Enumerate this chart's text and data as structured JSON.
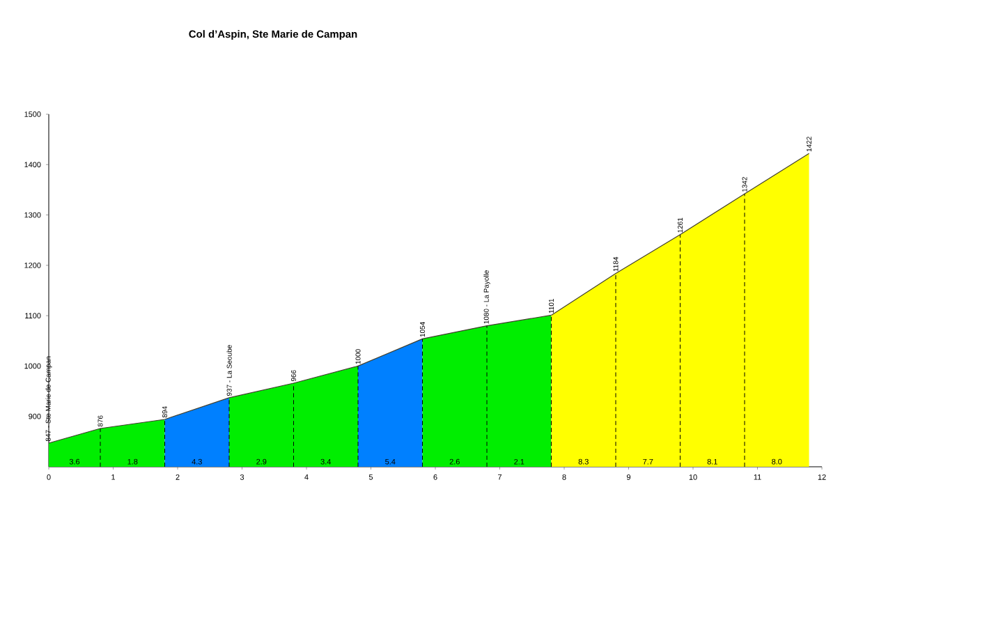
{
  "chart_data": {
    "type": "area",
    "title": "Col d’Aspin, Ste Marie de Campan",
    "series": [
      {
        "color": "#00ee00",
        "x": [
          0,
          0.8,
          1.8
        ],
        "values": [
          847,
          876,
          894
        ],
        "value_labels": [
          "847 - Ste Marie de Campan",
          "876",
          "894"
        ]
      },
      {
        "color": "#0080ff",
        "x": [
          1.8,
          2.8
        ],
        "values": [
          894,
          937
        ],
        "value_labels": [
          null,
          "937 - La Seoube"
        ]
      },
      {
        "color": "#00ee00",
        "x": [
          2.8,
          3.8,
          4.8
        ],
        "values": [
          937,
          966,
          1000
        ],
        "value_labels": [
          null,
          "966",
          "1000"
        ]
      },
      {
        "color": "#0080ff",
        "x": [
          4.8,
          5.8
        ],
        "values": [
          1000,
          1054
        ],
        "value_labels": [
          null,
          "1054"
        ]
      },
      {
        "color": "#00ee00",
        "x": [
          5.8,
          6.8,
          7.8
        ],
        "values": [
          1054,
          1080,
          1101
        ],
        "value_labels": [
          null,
          "1080 - La Payolle",
          "1101"
        ]
      },
      {
        "color": "#ffff00",
        "x": [
          7.8,
          8.8,
          9.8,
          10.8,
          11.8
        ],
        "values": [
          1101,
          1184,
          1261,
          1342,
          1422
        ],
        "value_labels": [
          null,
          "1184",
          "1261",
          "1342",
          "1422"
        ]
      }
    ],
    "annotations": [
      "3.6",
      "1.8",
      "4.3",
      "2.9",
      "3.4",
      "5.4",
      "2.6",
      "2.1",
      "8.3",
      "7.7",
      "8.1",
      "8.0"
    ],
    "xlim": [
      0,
      12
    ],
    "xticks": [
      0,
      1,
      2,
      3,
      4,
      5,
      6,
      7,
      8,
      9,
      10,
      11,
      12
    ],
    "ylim": [
      800,
      1500
    ],
    "yticks": [
      900,
      1000,
      1100,
      1200,
      1300,
      1400,
      1500
    ],
    "grid": false
  }
}
